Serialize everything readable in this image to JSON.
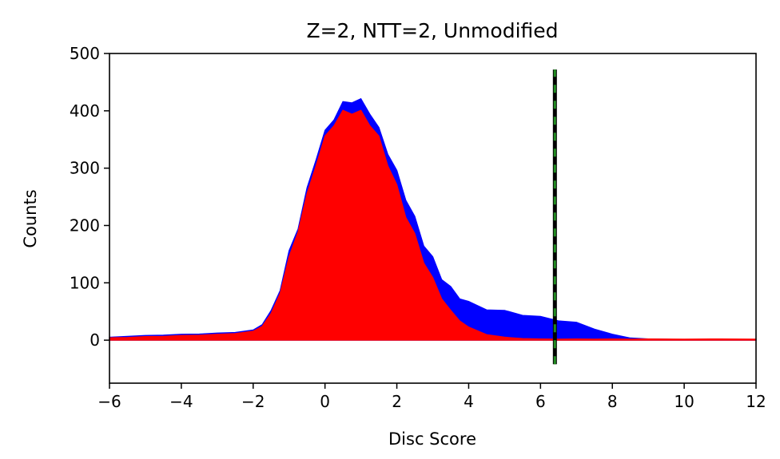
{
  "chart_data": {
    "type": "area",
    "title": "Z=2, NTT=2, Unmodified",
    "xlabel": "Disc Score",
    "ylabel": "Counts",
    "xlim": [
      -6,
      12
    ],
    "ylim": [
      -75,
      500
    ],
    "xticks": [
      "−6",
      "−4",
      "−2",
      "0",
      "2",
      "4",
      "6",
      "8",
      "10",
      "12"
    ],
    "yticks": [
      "0",
      "100",
      "200",
      "300",
      "400",
      "500"
    ],
    "grid": false,
    "legend": "none",
    "series": [
      {
        "color": "#0000ff",
        "x": [
          -6.0,
          -5.5,
          -5.0,
          -4.5,
          -4.0,
          -3.5,
          -3.0,
          -2.5,
          -2.0,
          -1.75,
          -1.5,
          -1.25,
          -1.0,
          -0.75,
          -0.5,
          -0.25,
          0.0,
          0.25,
          0.5,
          0.75,
          1.0,
          1.25,
          1.5,
          1.75,
          2.0,
          2.25,
          2.5,
          2.75,
          3.0,
          3.25,
          3.5,
          3.75,
          4.0,
          4.5,
          5.0,
          5.5,
          6.0,
          6.5,
          7.0,
          7.5,
          8.0,
          8.5,
          9.0,
          10.0,
          11.0,
          12.0
        ],
        "y": [
          5,
          7,
          8,
          9,
          10,
          11,
          12,
          14,
          17,
          28,
          50,
          90,
          150,
          200,
          260,
          320,
          360,
          390,
          410,
          420,
          415,
          400,
          365,
          330,
          290,
          250,
          210,
          170,
          140,
          110,
          90,
          75,
          65,
          55,
          50,
          45,
          40,
          35,
          30,
          20,
          10,
          4,
          2,
          1,
          1,
          1
        ]
      },
      {
        "color": "#ff0000",
        "x": [
          -6.0,
          -5.5,
          -5.0,
          -4.5,
          -4.0,
          -3.5,
          -3.0,
          -2.5,
          -2.0,
          -1.75,
          -1.5,
          -1.25,
          -1.0,
          -0.75,
          -0.5,
          -0.25,
          0.0,
          0.25,
          0.5,
          0.75,
          1.0,
          1.25,
          1.5,
          1.75,
          2.0,
          2.25,
          2.5,
          2.75,
          3.0,
          3.25,
          3.5,
          3.75,
          4.0,
          4.5,
          5.0,
          5.5,
          6.0,
          6.5,
          7.0,
          7.5,
          8.0,
          8.5,
          9.0,
          10.0,
          11.0,
          12.0
        ],
        "y": [
          4,
          5,
          6,
          7,
          8,
          9,
          10,
          12,
          15,
          25,
          45,
          85,
          140,
          195,
          250,
          310,
          350,
          380,
          395,
          400,
          395,
          380,
          350,
          310,
          265,
          220,
          180,
          140,
          105,
          75,
          50,
          35,
          22,
          10,
          5,
          3,
          2,
          2,
          2,
          2,
          2,
          2,
          2,
          2,
          2,
          2
        ]
      }
    ],
    "threshold": {
      "x": 6.4,
      "y_from": -42,
      "y_to": 472,
      "colors": [
        "#000000",
        "#228b22"
      ]
    }
  }
}
